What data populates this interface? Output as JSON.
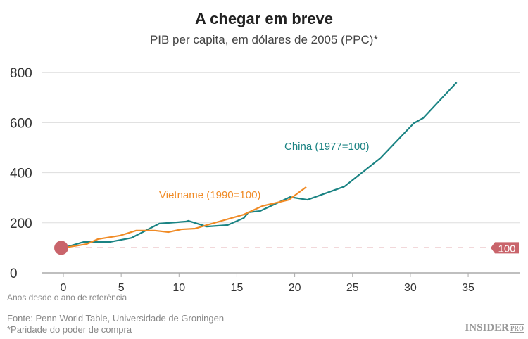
{
  "chart_data": {
    "type": "line",
    "title": "A chegar em breve",
    "subtitle": "PIB per capita, em dólares de 2005 (PPC)*",
    "xlabel": "Anos desde o ano de referência",
    "ylabel": "",
    "xlim": [
      -2,
      39
    ],
    "ylim": [
      0,
      800
    ],
    "xticks": [
      0,
      5,
      10,
      15,
      20,
      25,
      30,
      35
    ],
    "yticks": [
      0,
      200,
      400,
      600,
      800
    ],
    "grid": "horizontal",
    "reference_line": {
      "value": 100,
      "label": "100",
      "color": "#c9646b"
    },
    "series": [
      {
        "name": "China (1977=100)",
        "color": "#1a8383",
        "x": [
          0,
          1.8,
          4.1,
          5.9,
          8.3,
          10.6,
          10.8,
          12.4,
          14.2,
          15.6,
          16,
          17,
          19.6,
          21.1,
          24.3,
          27.4,
          30.3,
          31.1,
          34
        ],
        "y": [
          100,
          124,
          124,
          140,
          197,
          205,
          208,
          185,
          191,
          219,
          242,
          247,
          303,
          292,
          345,
          458,
          598,
          618,
          761
        ]
      },
      {
        "name": "Vietname (1990=100)",
        "color": "#f08a24",
        "x": [
          0,
          2,
          3,
          4.9,
          6.3,
          7.9,
          9.1,
          10.2,
          11.4,
          12.4,
          15.6,
          17.2,
          19.5,
          21
        ],
        "y": [
          100,
          115,
          135,
          149,
          169,
          169,
          163,
          174,
          177,
          191,
          233,
          267,
          292,
          343
        ]
      }
    ]
  },
  "footer": {
    "source": "Fonte: Penn World Table, Universidade de Groningen",
    "note": "*Paridade do poder de compra",
    "logo": "INSIDER",
    "logo_sub": "PRO"
  }
}
